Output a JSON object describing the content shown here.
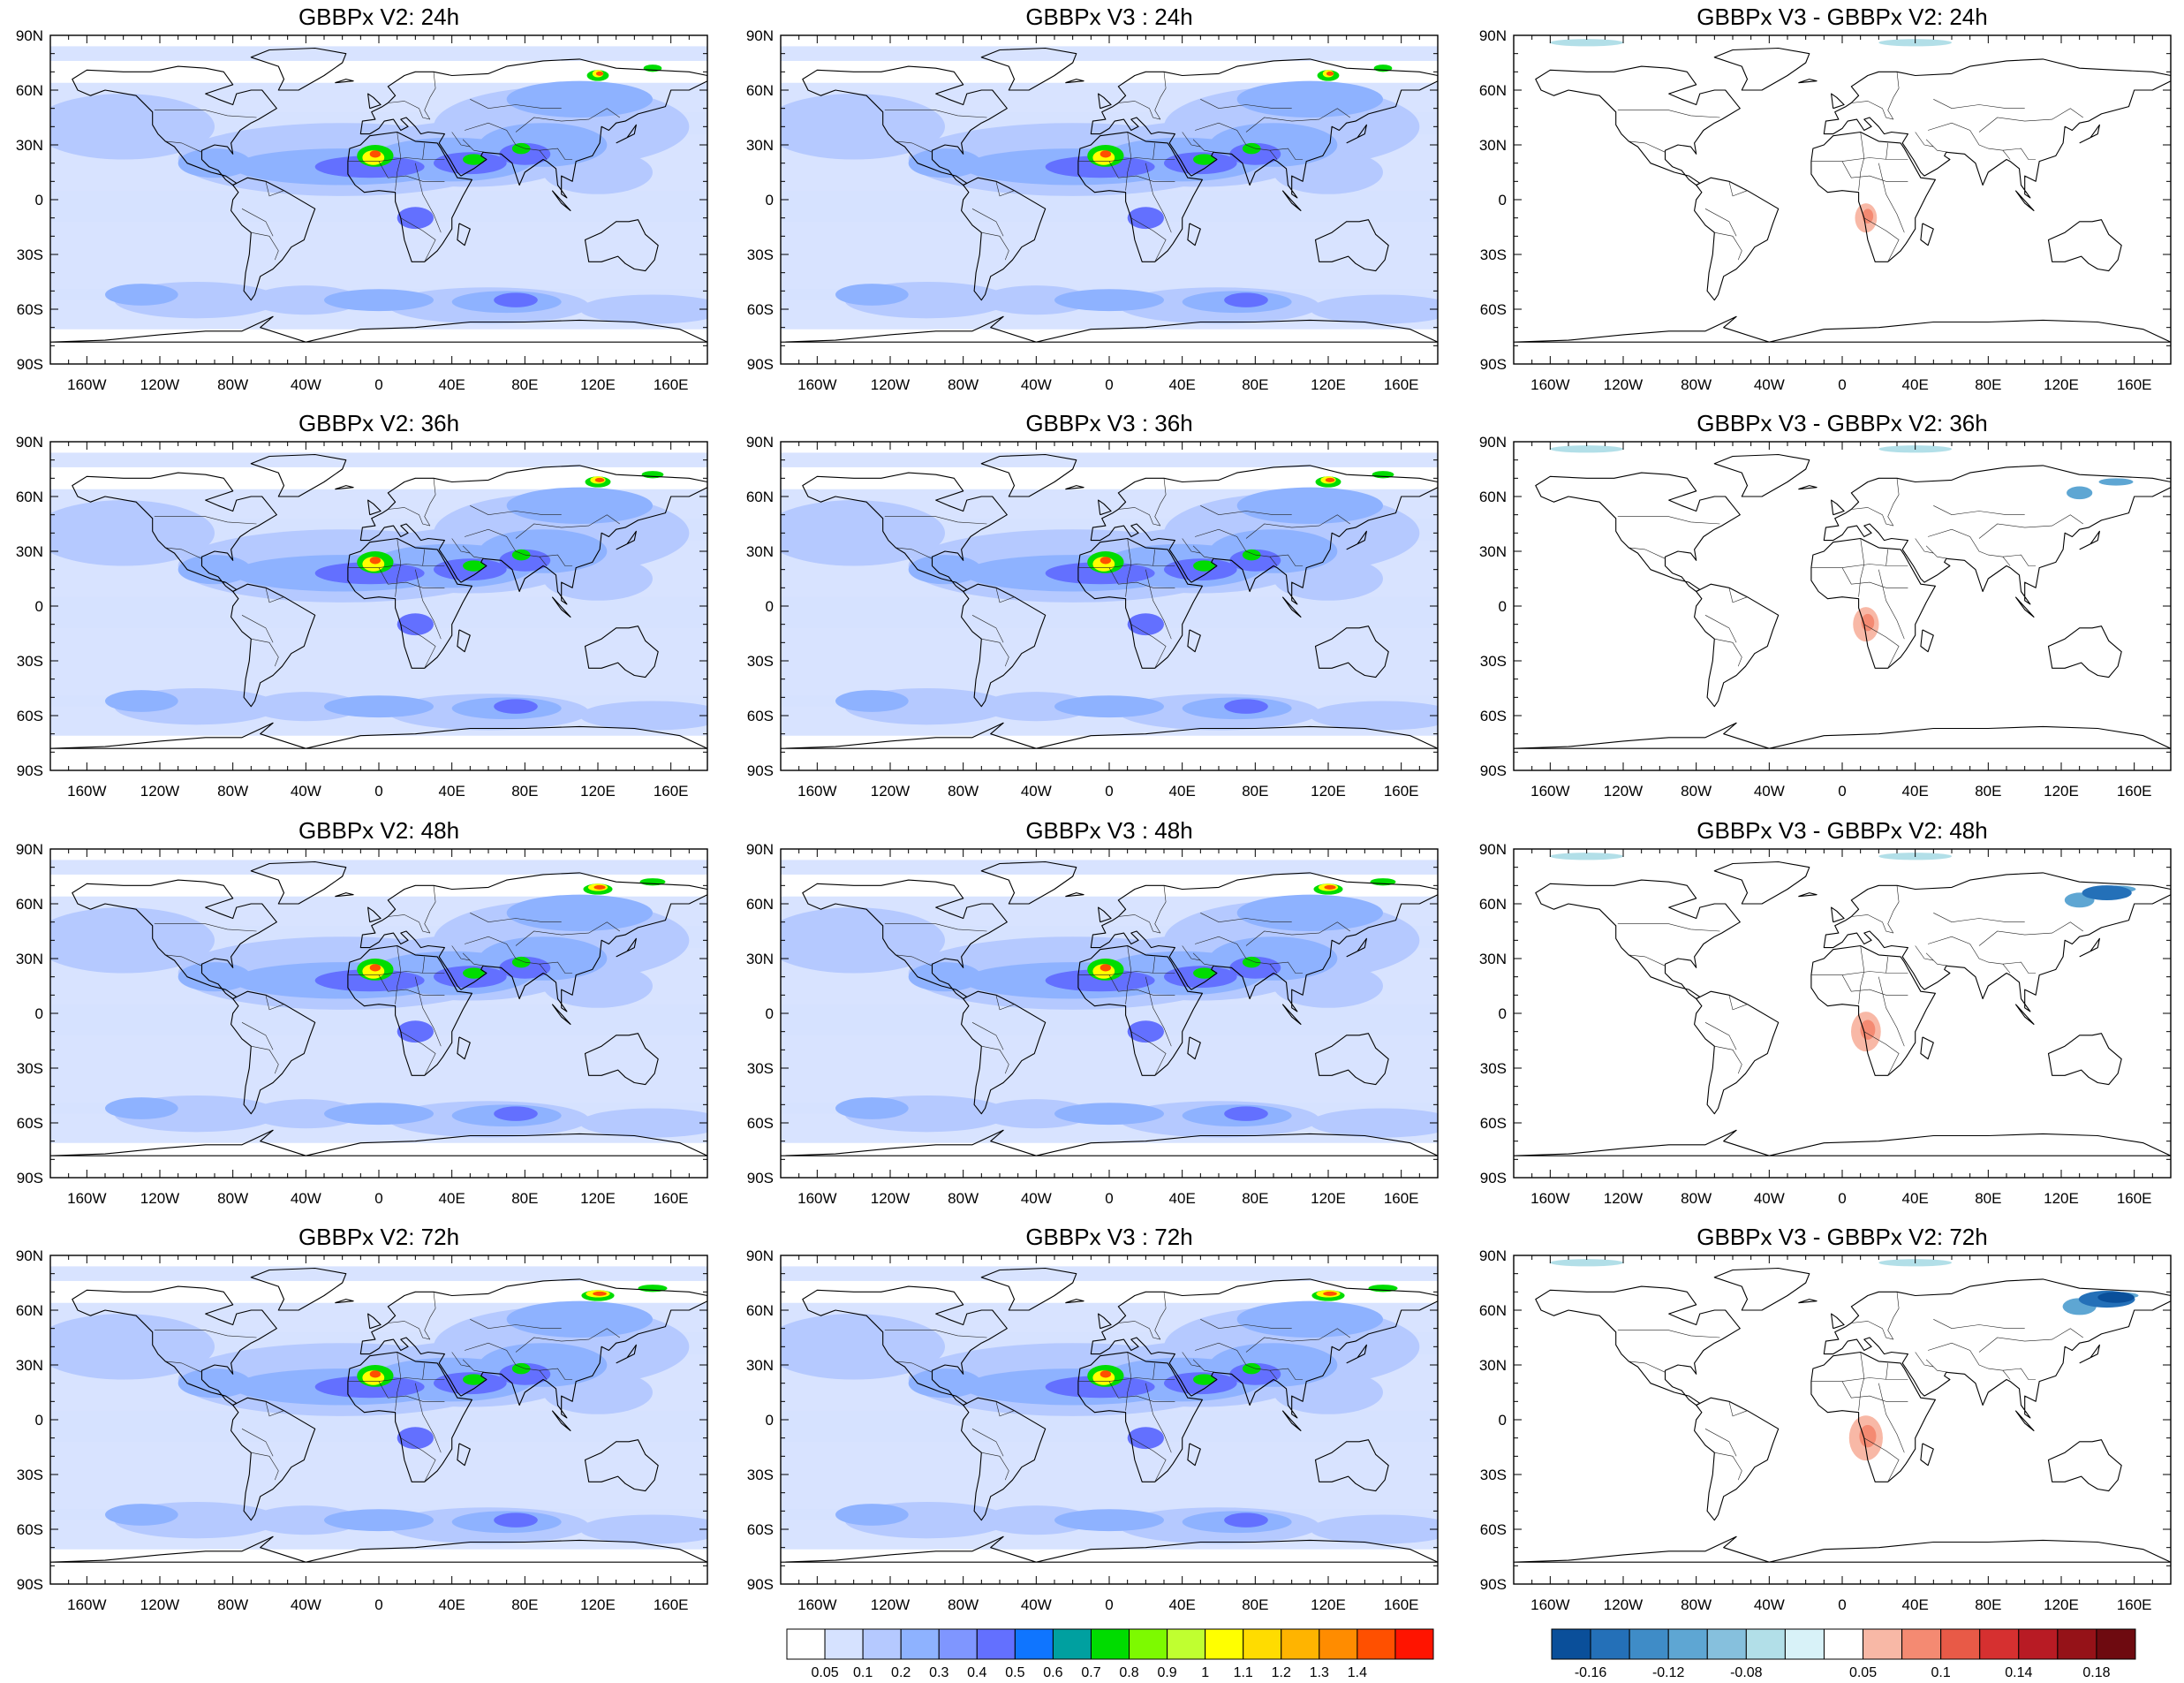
{
  "columns": [
    {
      "type": "field",
      "titles": [
        "GBBPx V2: 24h",
        "GBBPx V2: 36h",
        "GBBPx V2: 48h",
        "GBBPx V2: 72h"
      ]
    },
    {
      "type": "field",
      "titles": [
        "GBBPx V3 : 24h",
        "GBBPx V3 : 36h",
        "GBBPx V3 : 48h",
        "GBBPx V3 : 72h"
      ]
    },
    {
      "type": "diff",
      "titles": [
        "GBBPx V3 - GBBPx V2: 24h",
        "GBBPx V3 - GBBPx V2: 36h",
        "GBBPx V3 - GBBPx V2: 48h",
        "GBBPx V3 - GBBPx V2: 72h"
      ]
    }
  ],
  "lat_labels": [
    "90N",
    "60N",
    "30N",
    "0",
    "30S",
    "60S",
    "90S"
  ],
  "lon_labels": [
    "160W",
    "120W",
    "80W",
    "40W",
    "0",
    "40E",
    "80E",
    "120E",
    "160E"
  ],
  "field_colorbar": {
    "colors": [
      "#ffffff",
      "#d6e2ff",
      "#b5c9ff",
      "#8eb2ff",
      "#7f96ff",
      "#6370ff",
      "#0f75ff",
      "#00a0a0",
      "#00dc00",
      "#7dfa00",
      "#c0ff30",
      "#ffff00",
      "#ffdc00",
      "#ffb400",
      "#ff8c00",
      "#ff5000",
      "#ff1400"
    ],
    "labels": [
      "0.05",
      "0.1",
      "0.2",
      "0.3",
      "0.4",
      "0.5",
      "0.6",
      "0.7",
      "0.8",
      "0.9",
      "1",
      "1.1",
      "1.2",
      "1.3",
      "1.4"
    ]
  },
  "diff_colorbar": {
    "colors": [
      "#0a4f9a",
      "#2470b8",
      "#3f8cc7",
      "#5ea6d3",
      "#86c0dd",
      "#b2dfe8",
      "#d8f2f8",
      "#ffffff",
      "#f8b8a6",
      "#f48a72",
      "#e85a47",
      "#d63030",
      "#b81b24",
      "#951218",
      "#6e0a10"
    ],
    "labels": [
      "-0.16",
      "-0.12",
      "-0.08",
      "0.05",
      "0.1",
      "0.14",
      "0.18"
    ],
    "label_positions": [
      1,
      3,
      5,
      8,
      10,
      12,
      14
    ]
  }
}
